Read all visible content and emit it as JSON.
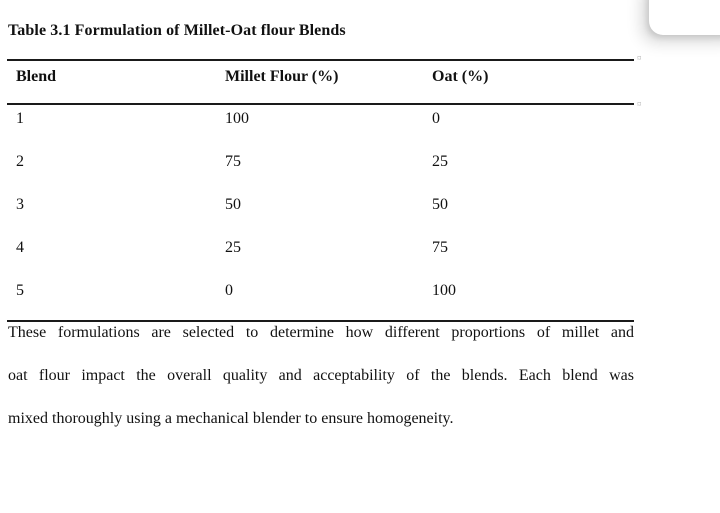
{
  "document": {
    "caption": "Table 3.1 Formulation of Millet-Oat flour Blends",
    "table": {
      "headers": [
        "Blend",
        "Millet Flour (%)",
        "Oat (%)"
      ],
      "rows": [
        [
          "1",
          "100",
          "0"
        ],
        [
          "2",
          "75",
          "25"
        ],
        [
          "3",
          "50",
          "50"
        ],
        [
          "4",
          "25",
          "75"
        ],
        [
          "5",
          "0",
          "100"
        ]
      ]
    },
    "paragraph_lines": [
      "These formulations are selected to determine how different proportions of millet and",
      "oat flour impact the overall quality and acceptability of the blends. Each blend was",
      "mixed thoroughly using a mechanical blender to ensure homogeneity."
    ]
  },
  "overlay": {
    "row_end_mark": "¤"
  },
  "colors": {
    "text": "#111111",
    "table_border": "#1a1a1a",
    "page_background": "#ffffff",
    "card_background": "#ffffff"
  }
}
